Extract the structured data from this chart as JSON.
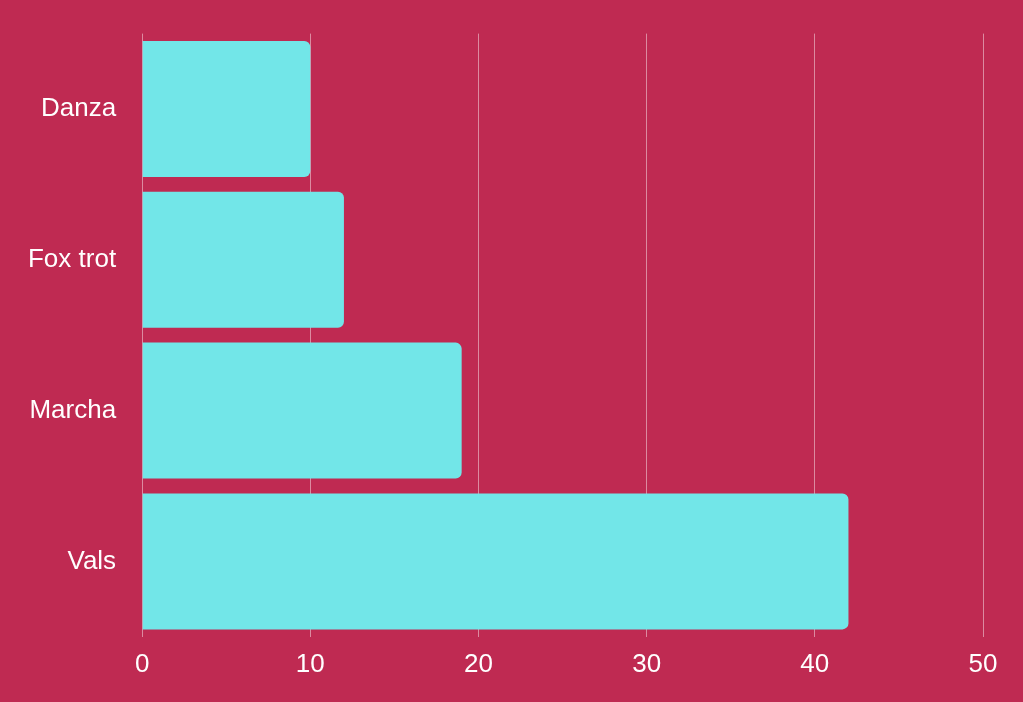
{
  "chart_data": {
    "type": "bar",
    "orientation": "horizontal",
    "categories": [
      "Danza",
      "Fox trot",
      "Marcha",
      "Vals"
    ],
    "values": [
      10,
      12,
      19,
      42
    ],
    "color": "#72e6e8",
    "xlim": [
      0,
      50
    ],
    "xticks": [
      0,
      10,
      20,
      30,
      40,
      50
    ],
    "grid": "x",
    "legend": false
  }
}
